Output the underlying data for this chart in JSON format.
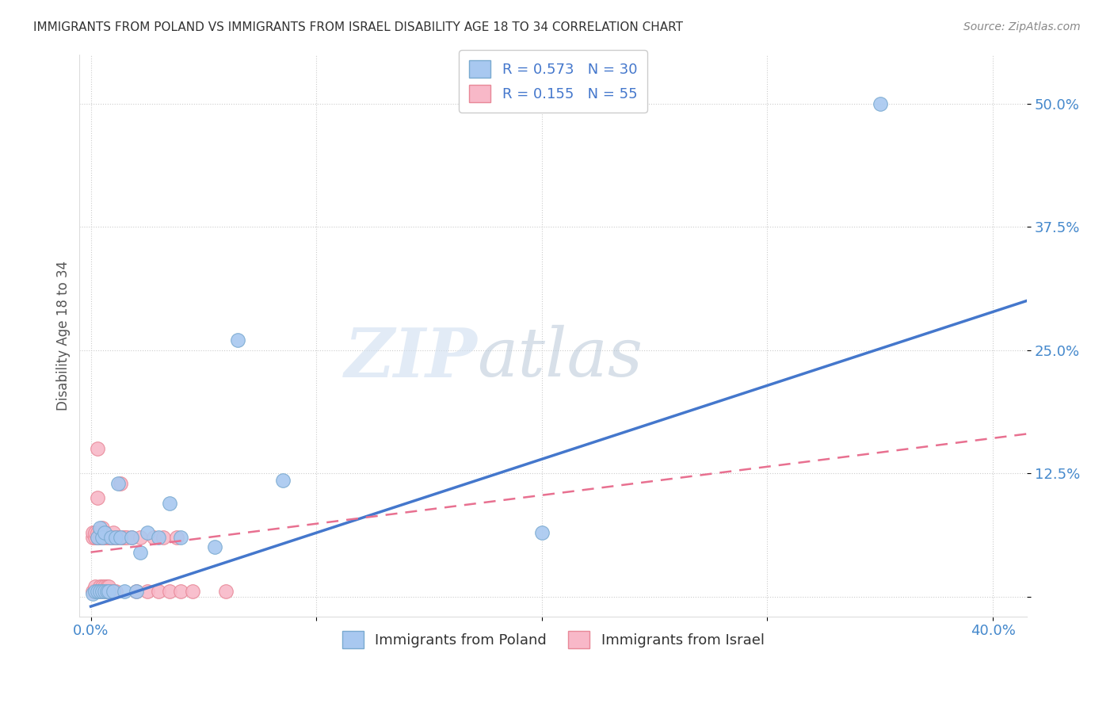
{
  "title": "IMMIGRANTS FROM POLAND VS IMMIGRANTS FROM ISRAEL DISABILITY AGE 18 TO 34 CORRELATION CHART",
  "source": "Source: ZipAtlas.com",
  "ylabel_label": "Disability Age 18 to 34",
  "x_ticks": [
    0.0,
    0.1,
    0.2,
    0.3,
    0.4
  ],
  "x_tick_labels": [
    "0.0%",
    "",
    "",
    "",
    "40.0%"
  ],
  "y_ticks": [
    0.0,
    0.125,
    0.25,
    0.375,
    0.5
  ],
  "y_tick_labels": [
    "",
    "12.5%",
    "25.0%",
    "37.5%",
    "50.0%"
  ],
  "xlim": [
    -0.005,
    0.415
  ],
  "ylim": [
    -0.02,
    0.55
  ],
  "poland_color": "#a8c8f0",
  "poland_edge_color": "#7aaad0",
  "israel_color": "#f8b8c8",
  "israel_edge_color": "#e88898",
  "poland_R": 0.573,
  "poland_N": 30,
  "israel_R": 0.155,
  "israel_N": 55,
  "poland_line_x0": 0.0,
  "poland_line_y0": -0.01,
  "poland_line_x1": 0.415,
  "poland_line_y1": 0.3,
  "israel_line_x0": 0.0,
  "israel_line_y0": 0.045,
  "israel_line_x1": 0.415,
  "israel_line_y1": 0.165,
  "poland_scatter_x": [
    0.001,
    0.002,
    0.003,
    0.003,
    0.004,
    0.004,
    0.005,
    0.005,
    0.006,
    0.006,
    0.007,
    0.008,
    0.009,
    0.01,
    0.011,
    0.012,
    0.013,
    0.015,
    0.018,
    0.02,
    0.022,
    0.025,
    0.03,
    0.035,
    0.04,
    0.055,
    0.065,
    0.085,
    0.2,
    0.35
  ],
  "poland_scatter_y": [
    0.003,
    0.005,
    0.005,
    0.06,
    0.005,
    0.07,
    0.005,
    0.06,
    0.005,
    0.065,
    0.005,
    0.005,
    0.06,
    0.005,
    0.06,
    0.115,
    0.06,
    0.005,
    0.06,
    0.005,
    0.045,
    0.065,
    0.06,
    0.095,
    0.06,
    0.05,
    0.26,
    0.118,
    0.065,
    0.5
  ],
  "israel_scatter_x": [
    0.001,
    0.001,
    0.001,
    0.002,
    0.002,
    0.002,
    0.002,
    0.003,
    0.003,
    0.003,
    0.003,
    0.003,
    0.004,
    0.004,
    0.004,
    0.004,
    0.005,
    0.005,
    0.005,
    0.005,
    0.005,
    0.006,
    0.006,
    0.006,
    0.006,
    0.007,
    0.007,
    0.007,
    0.008,
    0.008,
    0.008,
    0.009,
    0.009,
    0.01,
    0.01,
    0.01,
    0.011,
    0.011,
    0.012,
    0.013,
    0.014,
    0.015,
    0.016,
    0.018,
    0.02,
    0.022,
    0.025,
    0.028,
    0.03,
    0.032,
    0.035,
    0.038,
    0.04,
    0.045,
    0.06
  ],
  "israel_scatter_y": [
    0.005,
    0.06,
    0.065,
    0.005,
    0.01,
    0.06,
    0.065,
    0.005,
    0.06,
    0.065,
    0.1,
    0.15,
    0.005,
    0.01,
    0.06,
    0.065,
    0.005,
    0.01,
    0.06,
    0.065,
    0.07,
    0.005,
    0.01,
    0.06,
    0.065,
    0.005,
    0.01,
    0.06,
    0.005,
    0.01,
    0.06,
    0.005,
    0.06,
    0.005,
    0.06,
    0.065,
    0.005,
    0.06,
    0.06,
    0.115,
    0.06,
    0.06,
    0.06,
    0.06,
    0.005,
    0.06,
    0.005,
    0.06,
    0.005,
    0.06,
    0.005,
    0.06,
    0.005,
    0.005,
    0.005
  ],
  "legend_label_poland": "Immigrants from Poland",
  "legend_label_israel": "Immigrants from Israel",
  "background_color": "#ffffff",
  "grid_color": "#cccccc"
}
